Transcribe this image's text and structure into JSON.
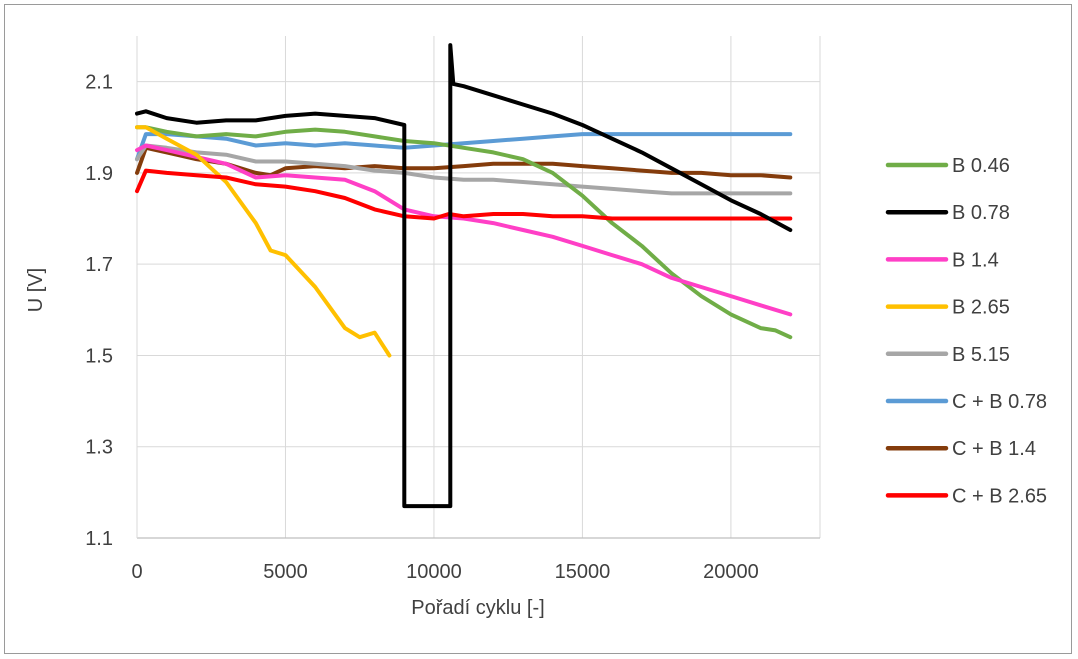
{
  "chart_data": {
    "type": "line",
    "title": "",
    "xlabel": "Pořadí cyklu [-]",
    "ylabel": "U [V]",
    "xlim": [
      0,
      23000
    ],
    "ylim": [
      1.1,
      2.2
    ],
    "xticks": [
      0,
      5000,
      10000,
      15000,
      20000
    ],
    "xtick_labels": [
      "0",
      "5000",
      "10000",
      "15000",
      "20000"
    ],
    "yticks": [
      1.1,
      1.3,
      1.5,
      1.7,
      1.9,
      2.1
    ],
    "ytick_labels": [
      "1.1",
      "1.3",
      "1.5",
      "1.7",
      "1.9",
      "2.1"
    ],
    "grid": true,
    "legend_position": "right",
    "series": [
      {
        "name": "B 0.46",
        "color": "#70AD47",
        "x": [
          0,
          300,
          1000,
          2000,
          3000,
          4000,
          5000,
          6000,
          7000,
          8000,
          9000,
          10000,
          11000,
          12000,
          13000,
          14000,
          15000,
          16000,
          17000,
          18000,
          19000,
          20000,
          21000,
          21500,
          22000
        ],
        "y": [
          2.0,
          2.0,
          1.99,
          1.98,
          1.985,
          1.98,
          1.99,
          1.995,
          1.99,
          1.98,
          1.97,
          1.965,
          1.955,
          1.945,
          1.93,
          1.9,
          1.85,
          1.79,
          1.74,
          1.68,
          1.63,
          1.59,
          1.56,
          1.555,
          1.54
        ]
      },
      {
        "name": "B 0.78",
        "color": "#000000",
        "x": [
          0,
          300,
          1000,
          2000,
          3000,
          4000,
          5000,
          6000,
          7000,
          8000,
          9000,
          9000,
          10550,
          10550,
          10650,
          11000,
          12000,
          13000,
          14000,
          15000,
          16000,
          17000,
          18000,
          19000,
          20000,
          21000,
          22000
        ],
        "y": [
          2.03,
          2.035,
          2.02,
          2.01,
          2.015,
          2.015,
          2.025,
          2.03,
          2.025,
          2.02,
          2.005,
          1.17,
          1.17,
          2.18,
          2.095,
          2.09,
          2.07,
          2.05,
          2.03,
          2.005,
          1.975,
          1.945,
          1.91,
          1.875,
          1.84,
          1.81,
          1.775
        ]
      },
      {
        "name": "B 1.4",
        "color": "#FF3FC6",
        "x": [
          0,
          300,
          1000,
          2000,
          3000,
          4000,
          5000,
          6000,
          7000,
          8000,
          9000,
          10000,
          11000,
          12000,
          13000,
          14000,
          15000,
          16000,
          17000,
          18000,
          19000,
          20000,
          21000,
          22000
        ],
        "y": [
          1.95,
          1.96,
          1.95,
          1.935,
          1.92,
          1.89,
          1.895,
          1.89,
          1.885,
          1.86,
          1.82,
          1.805,
          1.8,
          1.79,
          1.775,
          1.76,
          1.74,
          1.72,
          1.7,
          1.67,
          1.65,
          1.63,
          1.61,
          1.59
        ]
      },
      {
        "name": "B 2.65",
        "color": "#FFC000",
        "x": [
          0,
          300,
          1000,
          2000,
          3000,
          4000,
          4500,
          5000,
          6000,
          7000,
          7500,
          8000,
          8500
        ],
        "y": [
          2.0,
          2.0,
          1.975,
          1.94,
          1.88,
          1.79,
          1.73,
          1.72,
          1.65,
          1.56,
          1.54,
          1.55,
          1.5
        ]
      },
      {
        "name": "B 5.15",
        "color": "#A6A6A6",
        "x": [
          0,
          300,
          1000,
          2000,
          3000,
          4000,
          5000,
          6000,
          7000,
          8000,
          9000,
          10000,
          11000,
          12000,
          13000,
          14000,
          15000,
          16000,
          17000,
          18000,
          19000,
          20000,
          21000,
          22000
        ],
        "y": [
          1.93,
          1.96,
          1.955,
          1.945,
          1.94,
          1.925,
          1.925,
          1.92,
          1.915,
          1.905,
          1.9,
          1.89,
          1.885,
          1.885,
          1.88,
          1.875,
          1.87,
          1.865,
          1.86,
          1.855,
          1.855,
          1.855,
          1.855,
          1.855
        ]
      },
      {
        "name": "C + B 0.78",
        "color": "#5B9BD5",
        "x": [
          0,
          300,
          1000,
          2000,
          3000,
          4000,
          5000,
          6000,
          7000,
          8000,
          9000,
          10000,
          11000,
          12000,
          13000,
          14000,
          15000,
          16000,
          17000,
          18000,
          19000,
          20000,
          21000,
          22000
        ],
        "y": [
          1.93,
          1.985,
          1.985,
          1.98,
          1.975,
          1.96,
          1.965,
          1.96,
          1.965,
          1.96,
          1.955,
          1.96,
          1.965,
          1.97,
          1.975,
          1.98,
          1.985,
          1.985,
          1.985,
          1.985,
          1.985,
          1.985,
          1.985,
          1.985
        ]
      },
      {
        "name": "C + B 1.4",
        "color": "#843C0C",
        "x": [
          0,
          300,
          1000,
          2000,
          3000,
          4000,
          4500,
          5000,
          6000,
          7000,
          8000,
          9000,
          10000,
          11000,
          12000,
          13000,
          14000,
          15000,
          16000,
          17000,
          18000,
          19000,
          20000,
          21000,
          22000
        ],
        "y": [
          1.9,
          1.955,
          1.945,
          1.93,
          1.92,
          1.9,
          1.895,
          1.91,
          1.915,
          1.91,
          1.915,
          1.91,
          1.91,
          1.915,
          1.92,
          1.92,
          1.92,
          1.915,
          1.91,
          1.905,
          1.9,
          1.9,
          1.895,
          1.895,
          1.89
        ]
      },
      {
        "name": "C + B 2.65",
        "color": "#FF0000",
        "x": [
          0,
          300,
          1000,
          2000,
          3000,
          4000,
          5000,
          6000,
          7000,
          8000,
          9000,
          10000,
          10500,
          11000,
          12000,
          13000,
          14000,
          15000,
          16000,
          17000,
          18000,
          19000,
          20000,
          21000,
          22000
        ],
        "y": [
          1.86,
          1.905,
          1.9,
          1.895,
          1.89,
          1.875,
          1.87,
          1.86,
          1.845,
          1.82,
          1.805,
          1.8,
          1.81,
          1.805,
          1.81,
          1.81,
          1.805,
          1.805,
          1.8,
          1.8,
          1.8,
          1.8,
          1.8,
          1.8,
          1.8
        ]
      }
    ]
  }
}
